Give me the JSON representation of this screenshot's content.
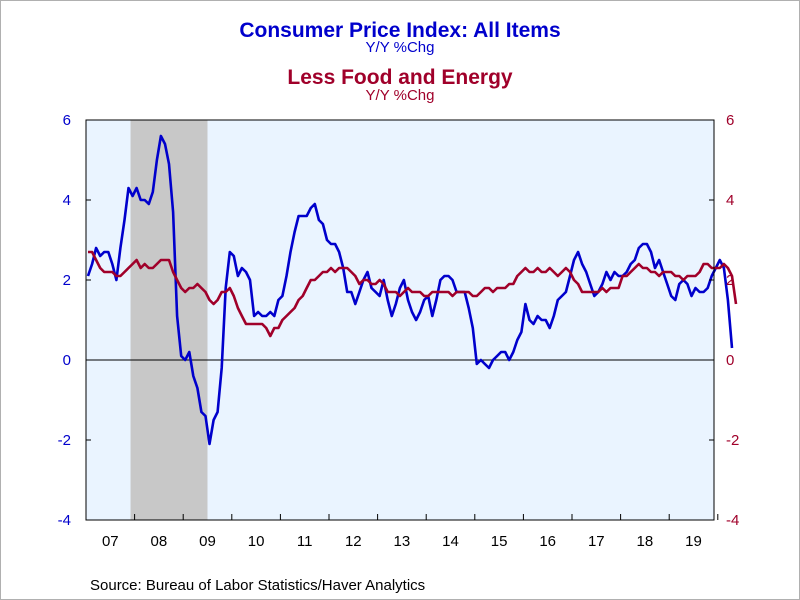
{
  "colors": {
    "cpi": "#0000cc",
    "core": "#a0002a",
    "plot_bg": "#eaf4ff",
    "recession": "#c8c8c8"
  },
  "titles": {
    "title1": "Consumer Price Index: All Items",
    "subtitle1": "Y/Y %Chg",
    "title2": "Less Food and Energy",
    "subtitle2": "Y/Y %Chg"
  },
  "source": "Source:  Bureau of Labor Statistics/Haver Analytics",
  "chart_data": {
    "type": "line",
    "x_tick_labels": [
      "07",
      "08",
      "09",
      "10",
      "11",
      "12",
      "13",
      "14",
      "15",
      "16",
      "17",
      "18",
      "19"
    ],
    "ylim": [
      -4,
      6
    ],
    "y_ticks": [
      -4,
      -2,
      0,
      2,
      4,
      6
    ],
    "y2lim": [
      -4,
      6
    ],
    "grid": false,
    "zero_line": true,
    "recession": {
      "start": "2007-12",
      "end": "2009-06"
    },
    "x_start": "2007-01",
    "series": [
      {
        "axis": "left",
        "values": [
          2.1,
          2.4,
          2.8,
          2.6,
          2.7,
          2.7,
          2.4,
          2.0,
          2.8,
          3.5,
          4.3,
          4.1,
          4.3,
          4.0,
          4.0,
          3.9,
          4.2,
          5.0,
          5.6,
          5.4,
          4.9,
          3.7,
          1.1,
          0.1,
          0.0,
          0.2,
          -0.4,
          -0.7,
          -1.3,
          -1.4,
          -2.1,
          -1.5,
          -1.3,
          -0.2,
          1.8,
          2.7,
          2.6,
          2.1,
          2.3,
          2.2,
          2.0,
          1.1,
          1.2,
          1.1,
          1.1,
          1.2,
          1.1,
          1.5,
          1.6,
          2.1,
          2.7,
          3.2,
          3.6,
          3.6,
          3.6,
          3.8,
          3.9,
          3.5,
          3.4,
          3.0,
          2.9,
          2.9,
          2.7,
          2.3,
          1.7,
          1.7,
          1.4,
          1.7,
          2.0,
          2.2,
          1.8,
          1.7,
          1.6,
          2.0,
          1.5,
          1.1,
          1.4,
          1.8,
          2.0,
          1.5,
          1.2,
          1.0,
          1.2,
          1.5,
          1.6,
          1.1,
          1.5,
          2.0,
          2.1,
          2.1,
          2.0,
          1.7,
          1.7,
          1.7,
          1.3,
          0.8,
          -0.1,
          0.0,
          -0.1,
          -0.2,
          0.0,
          0.1,
          0.2,
          0.2,
          0.0,
          0.2,
          0.5,
          0.7,
          1.4,
          1.0,
          0.9,
          1.1,
          1.0,
          1.0,
          0.8,
          1.1,
          1.5,
          1.6,
          1.7,
          2.1,
          2.5,
          2.7,
          2.4,
          2.2,
          1.9,
          1.6,
          1.7,
          1.9,
          2.2,
          2.0,
          2.2,
          2.1,
          2.1,
          2.2,
          2.4,
          2.5,
          2.8,
          2.9,
          2.9,
          2.7,
          2.3,
          2.5,
          2.2,
          1.9,
          1.6,
          1.5,
          1.9,
          2.0,
          1.9,
          1.6,
          1.8,
          1.7,
          1.7,
          1.8,
          2.1,
          2.3,
          2.5,
          2.3,
          1.5,
          0.3
        ]
      },
      {
        "axis": "right",
        "values": [
          2.7,
          2.7,
          2.5,
          2.3,
          2.2,
          2.2,
          2.2,
          2.1,
          2.1,
          2.2,
          2.3,
          2.4,
          2.5,
          2.3,
          2.4,
          2.3,
          2.3,
          2.4,
          2.5,
          2.5,
          2.5,
          2.2,
          2.0,
          1.8,
          1.7,
          1.8,
          1.8,
          1.9,
          1.8,
          1.7,
          1.5,
          1.4,
          1.5,
          1.7,
          1.7,
          1.8,
          1.6,
          1.3,
          1.1,
          0.9,
          0.9,
          0.9,
          0.9,
          0.9,
          0.8,
          0.6,
          0.8,
          0.8,
          1.0,
          1.1,
          1.2,
          1.3,
          1.5,
          1.6,
          1.8,
          2.0,
          2.0,
          2.1,
          2.2,
          2.2,
          2.3,
          2.2,
          2.3,
          2.3,
          2.3,
          2.2,
          2.1,
          1.9,
          2.0,
          2.0,
          1.9,
          1.9,
          2.0,
          1.9,
          1.7,
          1.7,
          1.7,
          1.6,
          1.7,
          1.8,
          1.7,
          1.7,
          1.7,
          1.6,
          1.6,
          1.7,
          1.7,
          1.7,
          1.7,
          1.7,
          1.6,
          1.7,
          1.7,
          1.7,
          1.7,
          1.6,
          1.6,
          1.7,
          1.8,
          1.8,
          1.7,
          1.8,
          1.8,
          1.8,
          1.9,
          1.9,
          2.1,
          2.2,
          2.3,
          2.2,
          2.2,
          2.3,
          2.2,
          2.2,
          2.3,
          2.2,
          2.1,
          2.2,
          2.3,
          2.2,
          2.0,
          1.9,
          1.7,
          1.7,
          1.7,
          1.7,
          1.7,
          1.8,
          1.7,
          1.8,
          1.8,
          1.8,
          2.1,
          2.1,
          2.2,
          2.3,
          2.4,
          2.3,
          2.3,
          2.2,
          2.2,
          2.1,
          2.2,
          2.2,
          2.2,
          2.1,
          2.1,
          2.0,
          2.1,
          2.1,
          2.1,
          2.2,
          2.4,
          2.4,
          2.3,
          2.3,
          2.3,
          2.4,
          2.3,
          2.1,
          1.4
        ]
      }
    ]
  }
}
